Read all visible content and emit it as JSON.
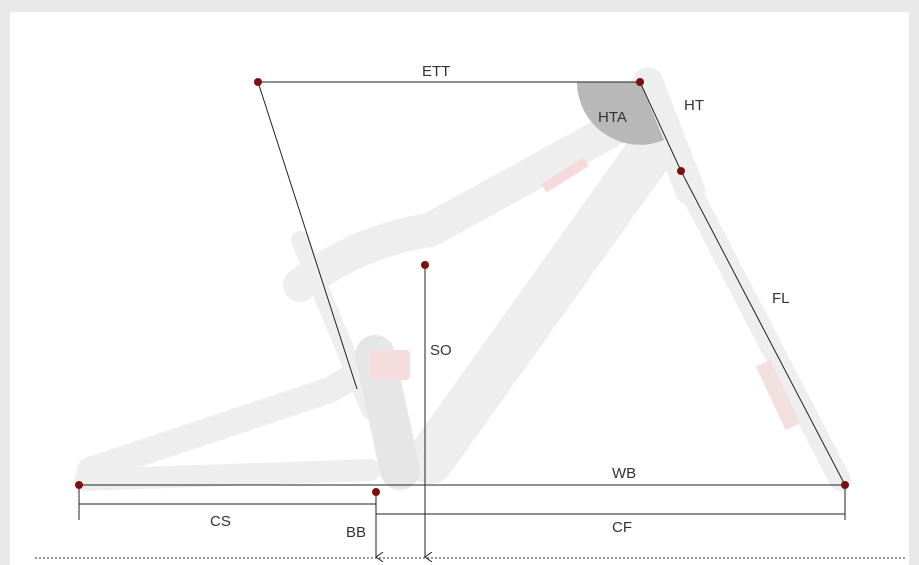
{
  "labels": {
    "ett": "ETT",
    "ht": "HT",
    "hta": "HTA",
    "fl": "FL",
    "so": "SO",
    "wb": "WB",
    "cs": "CS",
    "bb": "BB",
    "cf": "CF"
  },
  "colors": {
    "point": "#7a1010",
    "line": "#222222",
    "angle_fill": "#b8b8b8",
    "frame": "#ffffff",
    "background": "#e9e9e9"
  }
}
